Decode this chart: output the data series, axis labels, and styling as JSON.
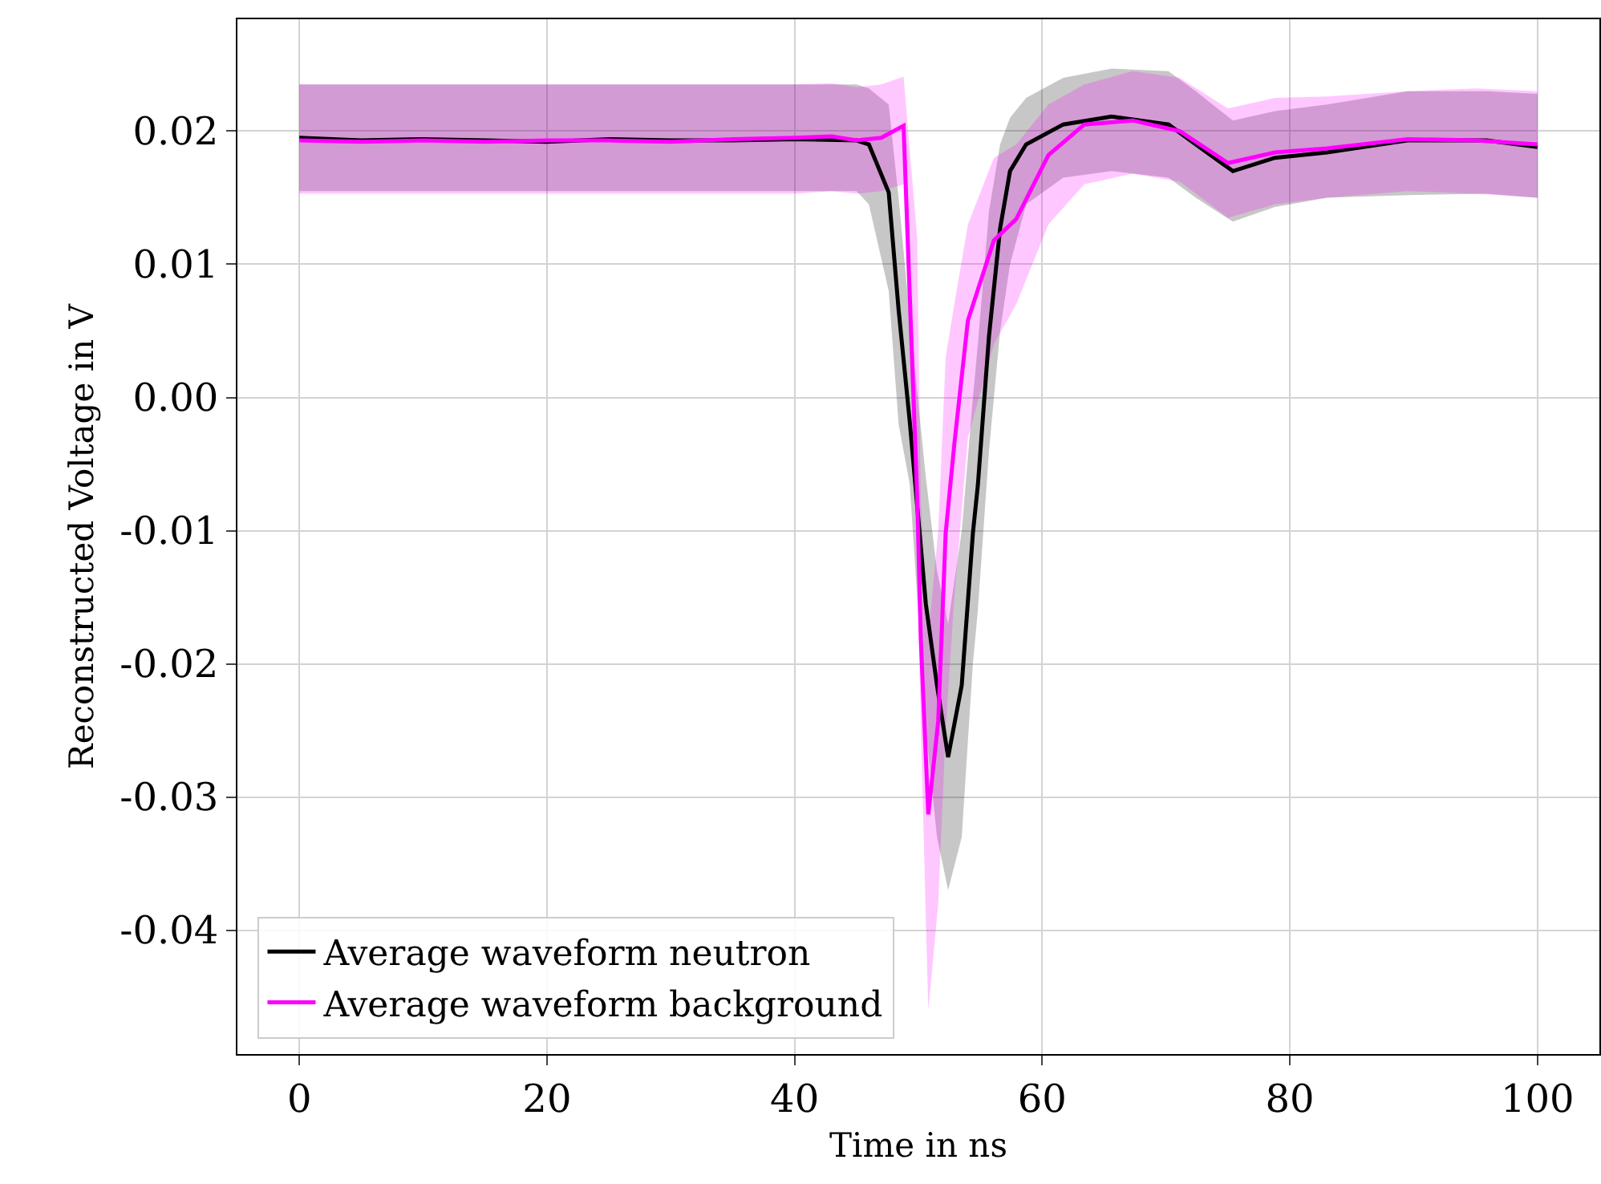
{
  "chart_data": {
    "type": "line",
    "xlabel": "Time in ns",
    "ylabel": "Reconstructed Voltage in V",
    "xlim": [
      -5,
      105
    ],
    "xticks": [
      0,
      20,
      40,
      60,
      80,
      100
    ],
    "ylim": [
      -0.0493,
      0.0284
    ],
    "yticks": [
      {
        "value": -0.04,
        "label": "-0.04"
      },
      {
        "value": -0.03,
        "label": "-0.03"
      },
      {
        "value": -0.02,
        "label": "-0.02"
      },
      {
        "value": -0.01,
        "label": "-0.01"
      },
      {
        "value": 0,
        "label": "0.00"
      },
      {
        "value": 0.01,
        "label": "0.01"
      },
      {
        "value": 0.02,
        "label": "0.02"
      }
    ],
    "grid": true,
    "legend": "bottom left",
    "marker": "none",
    "line_style": "solid",
    "series": [
      {
        "name": "Average waveform neutron",
        "color": "#000000",
        "x": [
          0,
          5,
          10,
          15,
          20,
          25,
          30,
          35,
          40,
          45,
          46,
          47.6,
          48.4,
          49.3,
          50.6,
          51.5,
          52.4,
          53.5,
          54.4,
          54.8,
          55.7,
          56.6,
          57.4,
          58.7,
          61.7,
          65.6,
          70.2,
          72.4,
          75.4,
          78.8,
          83,
          89.5,
          95.9,
          100
        ],
        "values": [
          0.0195,
          0.0193,
          0.0194,
          0.0193,
          0.0192,
          0.0194,
          0.0193,
          0.0193,
          0.0194,
          0.0193,
          0.019,
          0.0154,
          0.0066,
          -0.0018,
          -0.0155,
          -0.0216,
          -0.027,
          -0.0216,
          -0.0102,
          -0.0066,
          0.0046,
          0.0127,
          0.017,
          0.019,
          0.0205,
          0.0211,
          0.0205,
          0.019,
          0.017,
          0.018,
          0.0184,
          0.0193,
          0.0193,
          0.0188
        ],
        "lower": [
          0.0155,
          0.0155,
          0.0155,
          0.0155,
          0.0155,
          0.0155,
          0.0155,
          0.0155,
          0.0155,
          0.0155,
          0.0145,
          0.008,
          -0.002,
          -0.0065,
          -0.025,
          -0.033,
          -0.037,
          -0.033,
          -0.02,
          -0.016,
          -0.004,
          0.005,
          0.01,
          0.0145,
          0.0165,
          0.017,
          0.0165,
          0.015,
          0.0132,
          0.0143,
          0.015,
          0.0152,
          0.0153,
          0.015
        ],
        "upper": [
          0.0235,
          0.0235,
          0.0235,
          0.0235,
          0.0235,
          0.0235,
          0.0235,
          0.0235,
          0.0235,
          0.0235,
          0.0232,
          0.022,
          0.015,
          0.006,
          -0.006,
          -0.013,
          -0.017,
          -0.01,
          0.0,
          0.004,
          0.014,
          0.019,
          0.021,
          0.0225,
          0.024,
          0.0247,
          0.0245,
          0.023,
          0.0208,
          0.0215,
          0.022,
          0.023,
          0.023,
          0.0228
        ]
      },
      {
        "name": "Average waveform background",
        "color": "#ff00ff",
        "x": [
          0,
          5,
          10,
          15,
          20,
          25,
          30,
          35,
          40,
          43,
          45,
          47,
          48.8,
          49.9,
          50.2,
          50.8,
          51.6,
          52.2,
          52.9,
          54,
          56.1,
          57.9,
          60.5,
          63.4,
          67.3,
          71.1,
          75,
          78.8,
          83,
          89.5,
          95,
          100
        ],
        "values": [
          0.0193,
          0.0192,
          0.0193,
          0.0192,
          0.0193,
          0.0193,
          0.0192,
          0.0194,
          0.0195,
          0.0196,
          0.0193,
          0.0195,
          0.0204,
          -0.0075,
          -0.0183,
          -0.0313,
          -0.0243,
          -0.0102,
          -0.0035,
          0.0058,
          0.0118,
          0.0134,
          0.0182,
          0.0205,
          0.0208,
          0.02,
          0.0176,
          0.0184,
          0.0187,
          0.0194,
          0.0193,
          0.019
        ],
        "lower": [
          0.0153,
          0.0153,
          0.0153,
          0.0153,
          0.0153,
          0.0153,
          0.0153,
          0.0153,
          0.0153,
          0.0155,
          0.0153,
          0.0155,
          0.016,
          -0.012,
          -0.025,
          -0.046,
          -0.038,
          -0.025,
          -0.015,
          -0.003,
          0.004,
          0.007,
          0.013,
          0.016,
          0.0168,
          0.0162,
          0.0135,
          0.0145,
          0.015,
          0.0155,
          0.0153,
          0.015
        ],
        "upper": [
          0.0235,
          0.0235,
          0.0235,
          0.0235,
          0.0235,
          0.0235,
          0.0235,
          0.0235,
          0.0235,
          0.0236,
          0.0233,
          0.0235,
          0.0241,
          0.012,
          -0.008,
          -0.018,
          -0.01,
          0.003,
          0.007,
          0.013,
          0.018,
          0.019,
          0.022,
          0.0235,
          0.0245,
          0.024,
          0.0217,
          0.0225,
          0.0226,
          0.023,
          0.0232,
          0.023
        ]
      }
    ]
  }
}
